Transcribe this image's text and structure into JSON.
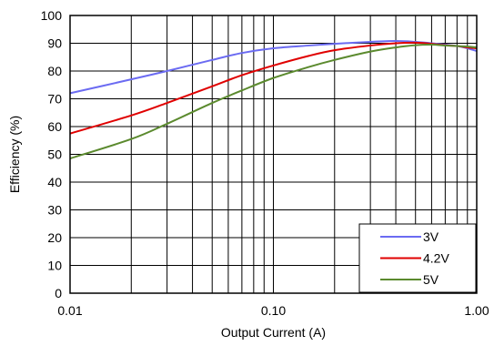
{
  "chart_data": {
    "type": "line",
    "title": "",
    "xlabel": "Output Current (A)",
    "ylabel": "Efficiency (%)",
    "xscale": "log",
    "xlim": [
      0.01,
      1.0
    ],
    "ylim": [
      0,
      100
    ],
    "grid": true,
    "legend_position": "bottom-right",
    "x_ticks": [
      0.01,
      0.1,
      1.0
    ],
    "x_tick_labels": [
      "0.01",
      "0.10",
      "1.00"
    ],
    "y_ticks": [
      0,
      10,
      20,
      30,
      40,
      50,
      60,
      70,
      80,
      90,
      100
    ],
    "y_tick_labels": [
      "0",
      "10",
      "20",
      "30",
      "40",
      "50",
      "60",
      "70",
      "80",
      "90",
      "100"
    ],
    "series": [
      {
        "name": "3V",
        "color": "#6b6bf2",
        "x": [
          0.01,
          0.02,
          0.03,
          0.05,
          0.07,
          0.1,
          0.15,
          0.2,
          0.3,
          0.4,
          0.5,
          0.6,
          0.7,
          0.8,
          0.9,
          1.0
        ],
        "y": [
          72,
          77,
          80,
          84,
          86.5,
          88.2,
          89.2,
          89.8,
          90.5,
          90.8,
          90.5,
          90,
          89.5,
          89,
          88.2,
          87.2
        ]
      },
      {
        "name": "4.2V",
        "color": "#e00000",
        "x": [
          0.01,
          0.02,
          0.03,
          0.05,
          0.07,
          0.1,
          0.15,
          0.2,
          0.3,
          0.4,
          0.5,
          0.6,
          0.7,
          0.8,
          0.9,
          1.0
        ],
        "y": [
          57.5,
          64,
          68.5,
          74.5,
          78.5,
          82,
          85.5,
          87.5,
          89.2,
          90,
          90.2,
          89.8,
          89.3,
          89,
          88.5,
          88.2
        ]
      },
      {
        "name": "5V",
        "color": "#5b8a2e",
        "x": [
          0.01,
          0.02,
          0.03,
          0.05,
          0.07,
          0.1,
          0.15,
          0.2,
          0.3,
          0.4,
          0.5,
          0.6,
          0.7,
          0.8,
          0.9,
          1.0
        ],
        "y": [
          48.5,
          55.5,
          61,
          68.5,
          73,
          77.5,
          81.5,
          84,
          87,
          88.5,
          89.3,
          89.5,
          89.2,
          89,
          88.8,
          88.5
        ]
      }
    ]
  }
}
